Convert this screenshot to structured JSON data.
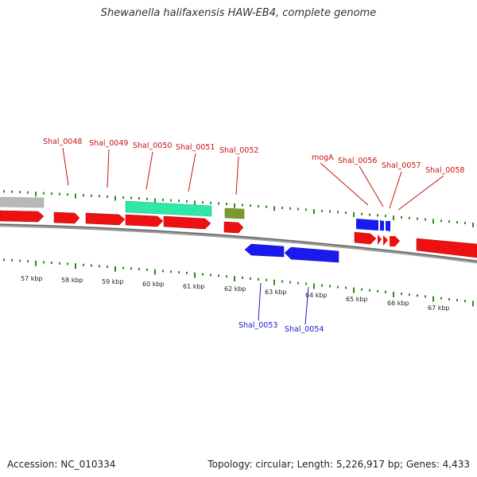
{
  "title": "Shewanella halifaxensis HAW-EB4, complete genome",
  "footer": {
    "accession": "Accession: NC_010334",
    "stats": "Topology: circular; Length: 5,226,917 bp; Genes: 4,433"
  },
  "colors": {
    "forward_gene": "#ee1111",
    "reverse_gene": "#1a1aee",
    "rna_gene": "#2ee8a8",
    "pseudo_gene": "#7a9a2a",
    "other_feature": "#b8b8b8",
    "tick": "#2e8b1e",
    "backbone": "#888888",
    "forward_label": "#cc1111",
    "reverse_label": "#1a1acc"
  },
  "kbp_labels": [
    "57 kbp",
    "58 kbp",
    "59 kbp",
    "60 kbp",
    "61 kbp",
    "62 kbp",
    "63 kbp",
    "64 kbp",
    "65 kbp",
    "66 kbp",
    "67 kbp"
  ],
  "top_labels": [
    {
      "text": "Shal_0048"
    },
    {
      "text": "Shal_0049"
    },
    {
      "text": "Shal_0050"
    },
    {
      "text": "Shal_0051"
    },
    {
      "text": "Shal_0052"
    },
    {
      "text": "mogA"
    },
    {
      "text": "Shal_0056"
    },
    {
      "text": "Shal_0057"
    },
    {
      "text": "Shal_0058"
    }
  ],
  "bottom_labels": [
    {
      "text": "Shal_0053"
    },
    {
      "text": "Shal_0054"
    }
  ]
}
